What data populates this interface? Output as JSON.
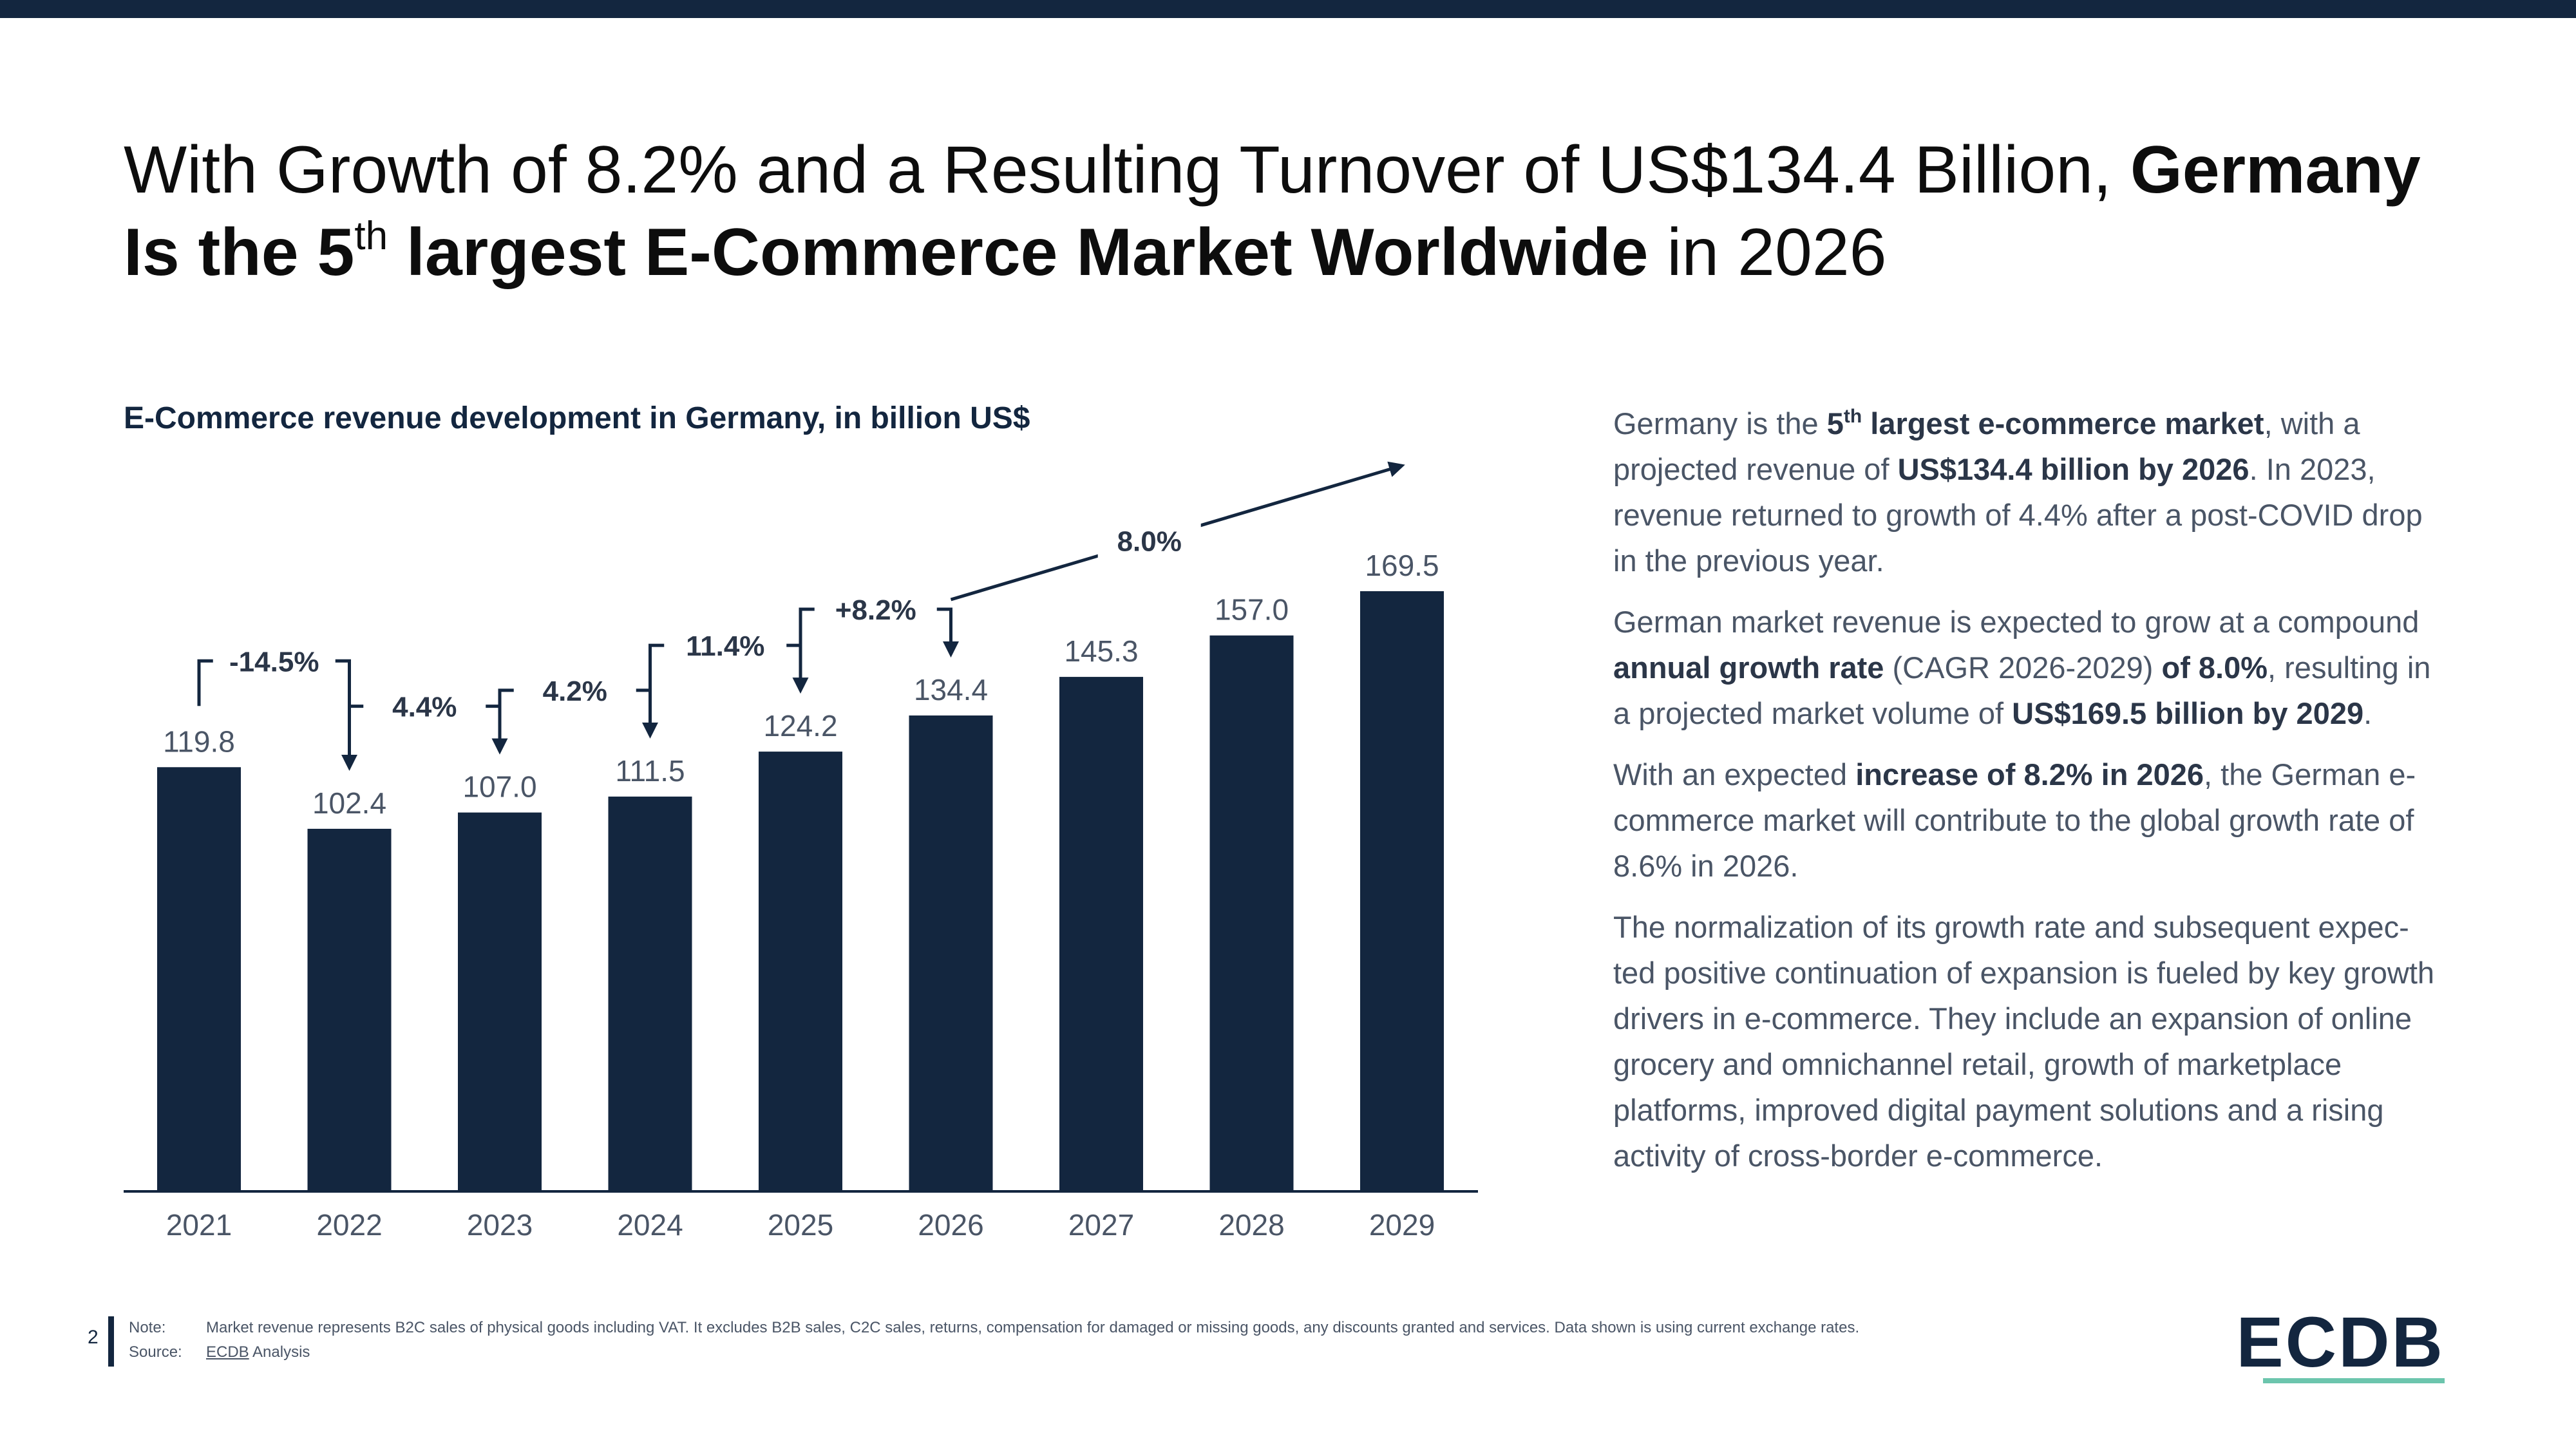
{
  "headline": {
    "part1": "With Growth of 8.2% and a Resulting Turnover of US$134.4 Billion, ",
    "bold1": "Germany Is the 5",
    "sup": "th",
    "bold2": " largest E-Commerce Market Worldwide",
    "part2": " in 2026"
  },
  "chart_data": {
    "type": "bar",
    "title": "E-Commerce revenue development in Germany, in billion US$",
    "categories": [
      "2021",
      "2022",
      "2023",
      "2024",
      "2025",
      "2026",
      "2027",
      "2028",
      "2029"
    ],
    "values": [
      119.8,
      102.4,
      107.0,
      111.5,
      124.2,
      134.4,
      145.3,
      157.0,
      169.5
    ],
    "value_labels": [
      "119.8",
      "102.4",
      "107.0",
      "111.5",
      "124.2",
      "134.4",
      "145.3",
      "157.0",
      "169.5"
    ],
    "growth_rates": [
      {
        "from": "2021",
        "to": "2022",
        "label": "-14.5%"
      },
      {
        "from": "2022",
        "to": "2023",
        "label": "4.4%"
      },
      {
        "from": "2023",
        "to": "2024",
        "label": "4.2%"
      },
      {
        "from": "2024",
        "to": "2025",
        "label": "11.4%"
      },
      {
        "from": "2025",
        "to": "2026",
        "label": "+8.2%"
      }
    ],
    "cagr": {
      "from": "2026",
      "to": "2029",
      "label": "8.0%"
    },
    "ylim": [
      0,
      169.5
    ],
    "grid": false,
    "bar_color": "#13263f"
  },
  "sidebar": {
    "p1": [
      {
        "t": "Germany is the "
      },
      {
        "t": "5",
        "b": true
      },
      {
        "t": "th",
        "b": true,
        "sup": true
      },
      {
        "t": " largest e-commerce market",
        "b": true
      },
      {
        "t": ", with a projected revenue of "
      },
      {
        "t": "US$134.4 billion by 2026",
        "b": true
      },
      {
        "t": ". In 2023, revenue returned to growth of 4.4% after a post-COVID drop in the previous year."
      }
    ],
    "p2": [
      {
        "t": "German market revenue is expected to grow at a compound "
      },
      {
        "t": "annual growth rate",
        "b": true
      },
      {
        "t": " (CAGR 2026-2029) "
      },
      {
        "t": "of 8.0%",
        "b": true
      },
      {
        "t": ", resulting in a projected market volume of "
      },
      {
        "t": "US$169.5 billion by 2029",
        "b": true
      },
      {
        "t": "."
      }
    ],
    "p3": [
      {
        "t": "With an expected "
      },
      {
        "t": "increase of 8.2% in 2026",
        "b": true
      },
      {
        "t": ", the German e-commerce market will contribute to the global growth rate of 8.6% in 2026."
      }
    ],
    "p4": [
      {
        "t": "The normalization of its growth rate and subsequent expec-ted positive continuation of expansion is fueled by key growth drivers in e-commerce. They include an expansion of online grocery and omnichannel retail, growth of marketplace platforms, improved digital payment solutions and a rising activity of cross-border e-commerce."
      }
    ]
  },
  "footer": {
    "page": "2",
    "note_label": "Note:",
    "note_text": "Market revenue represents B2C sales of physical goods including VAT. It excludes B2B sales, C2C sales, returns, compensation for damaged or missing goods, any discounts granted and services. Data shown is using current exchange rates.",
    "source_label": "Source:",
    "source_link": "ECDB",
    "source_text": " Analysis"
  },
  "logo": {
    "text": "ECDB",
    "accent_color": "#6cc5ad"
  }
}
